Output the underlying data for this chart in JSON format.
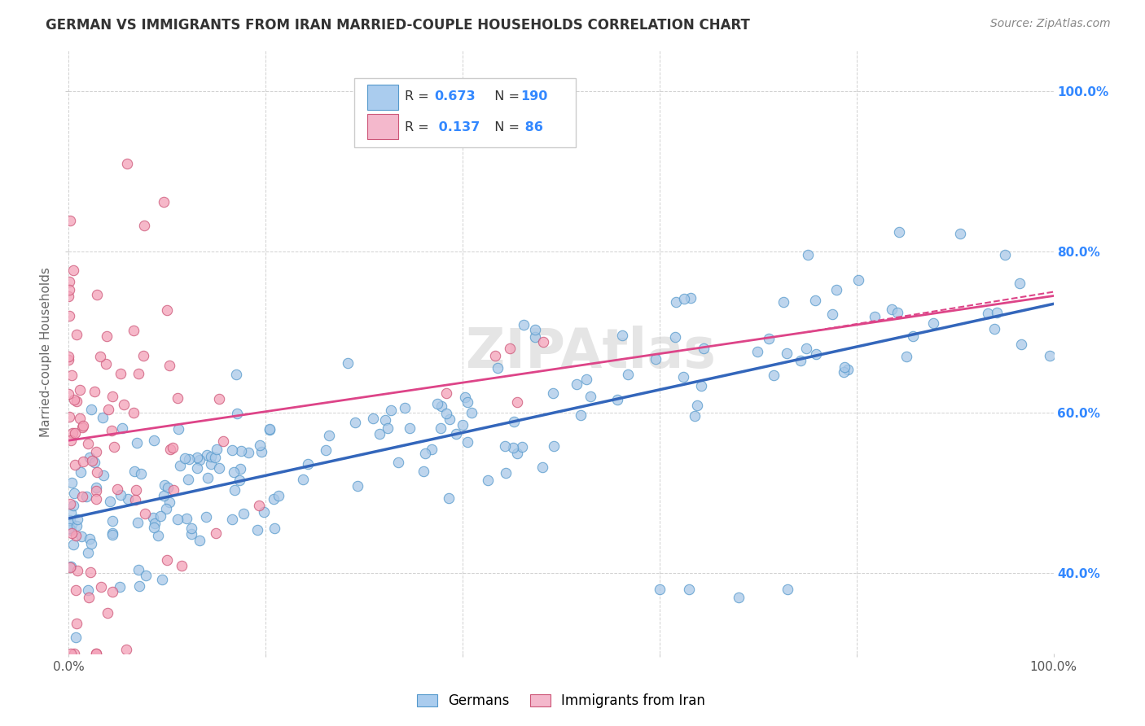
{
  "title": "GERMAN VS IMMIGRANTS FROM IRAN MARRIED-COUPLE HOUSEHOLDS CORRELATION CHART",
  "source": "Source: ZipAtlas.com",
  "ylabel": "Married-couple Households",
  "xlim": [
    0.0,
    1.0
  ],
  "ylim": [
    0.3,
    1.05
  ],
  "xticklabels_show": [
    "0.0%",
    "100.0%"
  ],
  "xticklabels_pos": [
    0.0,
    1.0
  ],
  "ytick_labels_right": [
    "40.0%",
    "60.0%",
    "80.0%",
    "100.0%"
  ],
  "ytick_positions_right": [
    0.4,
    0.6,
    0.8,
    1.0
  ],
  "legend_r1": "R = 0.673",
  "legend_n1": "N = 190",
  "legend_r2": "R = 0.137",
  "legend_n2": "N =  86",
  "watermark": "ZIPAtlas",
  "blue_color": "#a8c8e8",
  "pink_color": "#f4a0b8",
  "blue_edge_color": "#5599cc",
  "pink_edge_color": "#cc5577",
  "blue_line_color": "#3366bb",
  "pink_line_color": "#dd4488",
  "background_color": "#ffffff",
  "grid_color": "#cccccc",
  "blue_seed": 12345,
  "pink_seed": 67890,
  "legend_blue_color": "#aaccee",
  "legend_pink_color": "#f4b8cc",
  "legend_text_color": "#333333",
  "legend_num_color": "#3388ff",
  "right_axis_color": "#3388ff",
  "title_color": "#333333",
  "source_color": "#888888",
  "ylabel_color": "#666666"
}
